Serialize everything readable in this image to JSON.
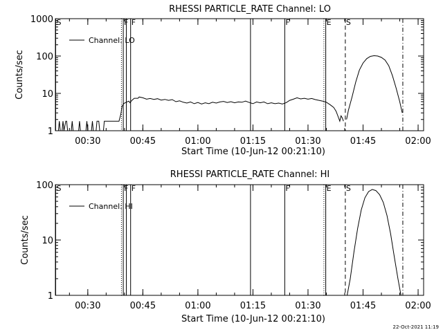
{
  "footer": {
    "timestamp": "22-Oct-2021 11:19"
  },
  "chart_data": [
    {
      "type": "line",
      "title": "RHESSI PARTICLE_RATE Channel: LO",
      "xlabel": "Start Time (10-Jun-12 00:21:10)",
      "ylabel": "Counts/sec",
      "yscale": "log",
      "ylim": [
        1,
        1000
      ],
      "xlim": [
        "00:21:10",
        "02:01:30"
      ],
      "yticks": [
        {
          "value": 1,
          "label": "1"
        },
        {
          "value": 10,
          "label": "10"
        },
        {
          "value": 100,
          "label": "100"
        },
        {
          "value": 1000,
          "label": "1000"
        }
      ],
      "xticks": [
        {
          "time": "00:30",
          "label": "00:30"
        },
        {
          "time": "00:45",
          "label": "00:45"
        },
        {
          "time": "01:00",
          "label": "01:00"
        },
        {
          "time": "01:15",
          "label": "01:15"
        },
        {
          "time": "01:30",
          "label": "01:30"
        },
        {
          "time": "01:45",
          "label": "01:45"
        },
        {
          "time": "02:00",
          "label": "02:00"
        }
      ],
      "legend": {
        "label": "Channel: LO",
        "placement": "top-left"
      },
      "markers": [
        {
          "time": "00:21:15",
          "label": "S",
          "style": "solid"
        },
        {
          "time": "00:39:10",
          "label": "",
          "style": "dotted"
        },
        {
          "time": "00:39:40",
          "label": "F",
          "style": "solid"
        },
        {
          "time": "00:40:30",
          "label": "",
          "style": "solid"
        },
        {
          "time": "00:41:40",
          "label": "F",
          "style": "solid"
        },
        {
          "time": "01:14:20",
          "label": "",
          "style": "solid"
        },
        {
          "time": "01:23:40",
          "label": "F",
          "style": "solid"
        },
        {
          "time": "01:34:20",
          "label": "",
          "style": "dotted"
        },
        {
          "time": "01:34:50",
          "label": "E",
          "style": "solid"
        },
        {
          "time": "01:40:10",
          "label": "S",
          "style": "dashed"
        },
        {
          "time": "01:55:50",
          "label": "",
          "style": "dashdot"
        }
      ],
      "series": [
        {
          "points": [
            {
              "t": "00:21:10",
              "y": 1
            },
            {
              "t": "00:22:00",
              "y": 1
            },
            {
              "t": "00:22:15",
              "y": 1.8
            },
            {
              "t": "00:22:30",
              "y": 1
            },
            {
              "t": "00:23:00",
              "y": 1
            },
            {
              "t": "00:23:15",
              "y": 1.8
            },
            {
              "t": "00:23:30",
              "y": 1
            },
            {
              "t": "00:24:00",
              "y": 1.8
            },
            {
              "t": "00:24:15",
              "y": 1.8
            },
            {
              "t": "00:24:30",
              "y": 1
            },
            {
              "t": "00:25:30",
              "y": 1
            },
            {
              "t": "00:25:45",
              "y": 1.8
            },
            {
              "t": "00:26:00",
              "y": 1
            },
            {
              "t": "00:27:30",
              "y": 1
            },
            {
              "t": "00:27:45",
              "y": 1.8
            },
            {
              "t": "00:28:00",
              "y": 1
            },
            {
              "t": "00:29:30",
              "y": 1
            },
            {
              "t": "00:29:45",
              "y": 1.8
            },
            {
              "t": "00:30:00",
              "y": 1
            },
            {
              "t": "00:31:00",
              "y": 1
            },
            {
              "t": "00:31:15",
              "y": 1.8
            },
            {
              "t": "00:31:30",
              "y": 1
            },
            {
              "t": "00:32:15",
              "y": 1
            },
            {
              "t": "00:32:30",
              "y": 1.8
            },
            {
              "t": "00:33:00",
              "y": 1.8
            },
            {
              "t": "00:33:15",
              "y": 1
            },
            {
              "t": "00:34:15",
              "y": 1
            },
            {
              "t": "00:34:30",
              "y": 1.8
            },
            {
              "t": "00:38:30",
              "y": 1.8
            },
            {
              "t": "00:39:00",
              "y": 2.8
            },
            {
              "t": "00:39:20",
              "y": 4.5
            },
            {
              "t": "00:39:50",
              "y": 5.4
            },
            {
              "t": "00:40:30",
              "y": 5.8
            },
            {
              "t": "00:41:10",
              "y": 6.2
            },
            {
              "t": "00:41:30",
              "y": 5.6
            },
            {
              "t": "00:42:00",
              "y": 6.5
            },
            {
              "t": "00:42:40",
              "y": 7.4
            },
            {
              "t": "00:43:40",
              "y": 7.4
            },
            {
              "t": "00:44:00",
              "y": 8.0
            },
            {
              "t": "00:45:00",
              "y": 7.6
            },
            {
              "t": "00:46:00",
              "y": 7.0
            },
            {
              "t": "00:47:00",
              "y": 7.3
            },
            {
              "t": "00:48:00",
              "y": 6.9
            },
            {
              "t": "00:49:00",
              "y": 7.2
            },
            {
              "t": "00:50:00",
              "y": 6.6
            },
            {
              "t": "00:51:00",
              "y": 6.9
            },
            {
              "t": "00:52:00",
              "y": 6.5
            },
            {
              "t": "00:53:00",
              "y": 6.8
            },
            {
              "t": "00:54:00",
              "y": 6.0
            },
            {
              "t": "00:55:00",
              "y": 6.3
            },
            {
              "t": "00:56:00",
              "y": 5.8
            },
            {
              "t": "00:57:00",
              "y": 5.5
            },
            {
              "t": "00:58:00",
              "y": 5.9
            },
            {
              "t": "00:59:00",
              "y": 5.3
            },
            {
              "t": "01:00:00",
              "y": 5.7
            },
            {
              "t": "01:01:00",
              "y": 5.2
            },
            {
              "t": "01:02:00",
              "y": 5.6
            },
            {
              "t": "01:03:00",
              "y": 5.3
            },
            {
              "t": "01:04:00",
              "y": 5.8
            },
            {
              "t": "01:05:00",
              "y": 5.5
            },
            {
              "t": "01:06:00",
              "y": 5.9
            },
            {
              "t": "01:07:00",
              "y": 6.1
            },
            {
              "t": "01:08:00",
              "y": 5.7
            },
            {
              "t": "01:09:00",
              "y": 6.0
            },
            {
              "t": "01:10:00",
              "y": 5.6
            },
            {
              "t": "01:11:00",
              "y": 5.9
            },
            {
              "t": "01:12:00",
              "y": 5.8
            },
            {
              "t": "01:13:00",
              "y": 6.2
            },
            {
              "t": "01:14:00",
              "y": 5.7
            },
            {
              "t": "01:15:00",
              "y": 5.3
            },
            {
              "t": "01:16:00",
              "y": 5.9
            },
            {
              "t": "01:17:00",
              "y": 5.6
            },
            {
              "t": "01:18:00",
              "y": 5.9
            },
            {
              "t": "01:19:00",
              "y": 5.3
            },
            {
              "t": "01:20:00",
              "y": 5.6
            },
            {
              "t": "01:21:00",
              "y": 5.3
            },
            {
              "t": "01:22:00",
              "y": 5.5
            },
            {
              "t": "01:23:00",
              "y": 5.2
            },
            {
              "t": "01:24:00",
              "y": 5.6
            },
            {
              "t": "01:25:00",
              "y": 6.5
            },
            {
              "t": "01:26:00",
              "y": 7.0
            },
            {
              "t": "01:27:00",
              "y": 7.6
            },
            {
              "t": "01:28:00",
              "y": 7.1
            },
            {
              "t": "01:29:00",
              "y": 7.4
            },
            {
              "t": "01:30:00",
              "y": 7.0
            },
            {
              "t": "01:31:00",
              "y": 7.3
            },
            {
              "t": "01:32:00",
              "y": 6.8
            },
            {
              "t": "01:33:00",
              "y": 6.5
            },
            {
              "t": "01:34:00",
              "y": 6.2
            },
            {
              "t": "01:35:00",
              "y": 5.8
            },
            {
              "t": "01:36:00",
              "y": 5.0
            },
            {
              "t": "01:37:00",
              "y": 4.2
            },
            {
              "t": "01:37:40",
              "y": 3.3
            },
            {
              "t": "01:38:20",
              "y": 2.2
            },
            {
              "t": "01:38:40",
              "y": 1.8
            },
            {
              "t": "01:39:00",
              "y": 2.5
            },
            {
              "t": "01:39:20",
              "y": 2.2
            },
            {
              "t": "01:39:40",
              "y": 1.8
            }
          ]
        },
        {
          "points": [
            {
              "t": "01:40:30",
              "y": 2.0
            },
            {
              "t": "01:41:00",
              "y": 3.5
            },
            {
              "t": "01:42:00",
              "y": 8
            },
            {
              "t": "01:43:00",
              "y": 20
            },
            {
              "t": "01:44:00",
              "y": 42
            },
            {
              "t": "01:45:00",
              "y": 65
            },
            {
              "t": "01:46:00",
              "y": 85
            },
            {
              "t": "01:47:00",
              "y": 98
            },
            {
              "t": "01:48:00",
              "y": 102
            },
            {
              "t": "01:49:00",
              "y": 100
            },
            {
              "t": "01:50:00",
              "y": 92
            },
            {
              "t": "01:51:00",
              "y": 78
            },
            {
              "t": "01:52:00",
              "y": 55
            },
            {
              "t": "01:53:00",
              "y": 30
            },
            {
              "t": "01:54:00",
              "y": 14
            },
            {
              "t": "01:55:00",
              "y": 6
            },
            {
              "t": "01:55:40",
              "y": 3
            }
          ]
        }
      ]
    },
    {
      "type": "line",
      "title": "RHESSI PARTICLE_RATE Channel: HI",
      "xlabel": "Start Time (10-Jun-12 00:21:10)",
      "ylabel": "Counts/sec",
      "yscale": "log",
      "ylim": [
        1,
        100
      ],
      "xlim": [
        "00:21:10",
        "02:01:30"
      ],
      "yticks": [
        {
          "value": 1,
          "label": "1"
        },
        {
          "value": 10,
          "label": "10"
        },
        {
          "value": 100,
          "label": "100"
        }
      ],
      "xticks": [
        {
          "time": "00:30",
          "label": "00:30"
        },
        {
          "time": "00:45",
          "label": "00:45"
        },
        {
          "time": "01:00",
          "label": "01:00"
        },
        {
          "time": "01:15",
          "label": "01:15"
        },
        {
          "time": "01:30",
          "label": "01:30"
        },
        {
          "time": "01:45",
          "label": "01:45"
        },
        {
          "time": "02:00",
          "label": "02:00"
        }
      ],
      "legend": {
        "label": "Channel: HI",
        "placement": "top-left"
      },
      "markers": [
        {
          "time": "00:21:15",
          "label": "S",
          "style": "solid"
        },
        {
          "time": "00:39:10",
          "label": "",
          "style": "dotted"
        },
        {
          "time": "00:39:40",
          "label": "F",
          "style": "solid"
        },
        {
          "time": "00:40:30",
          "label": "",
          "style": "solid"
        },
        {
          "time": "00:41:40",
          "label": "F",
          "style": "solid"
        },
        {
          "time": "01:14:20",
          "label": "",
          "style": "solid"
        },
        {
          "time": "01:23:40",
          "label": "F",
          "style": "solid"
        },
        {
          "time": "01:34:20",
          "label": "",
          "style": "dotted"
        },
        {
          "time": "01:34:50",
          "label": "E",
          "style": "solid"
        },
        {
          "time": "01:40:10",
          "label": "S",
          "style": "dashed"
        },
        {
          "time": "01:55:50",
          "label": "",
          "style": "dashdot"
        }
      ],
      "series": [
        {
          "points": [
            {
              "t": "01:40:40",
              "y": 1
            },
            {
              "t": "01:41:30",
              "y": 2
            },
            {
              "t": "01:42:30",
              "y": 6
            },
            {
              "t": "01:43:30",
              "y": 16
            },
            {
              "t": "01:44:30",
              "y": 35
            },
            {
              "t": "01:45:30",
              "y": 58
            },
            {
              "t": "01:46:30",
              "y": 75
            },
            {
              "t": "01:47:30",
              "y": 82
            },
            {
              "t": "01:48:30",
              "y": 78
            },
            {
              "t": "01:49:30",
              "y": 66
            },
            {
              "t": "01:50:30",
              "y": 48
            },
            {
              "t": "01:51:30",
              "y": 28
            },
            {
              "t": "01:52:30",
              "y": 13
            },
            {
              "t": "01:53:30",
              "y": 5
            },
            {
              "t": "01:54:30",
              "y": 2
            },
            {
              "t": "01:55:20",
              "y": 1
            }
          ]
        }
      ]
    }
  ]
}
